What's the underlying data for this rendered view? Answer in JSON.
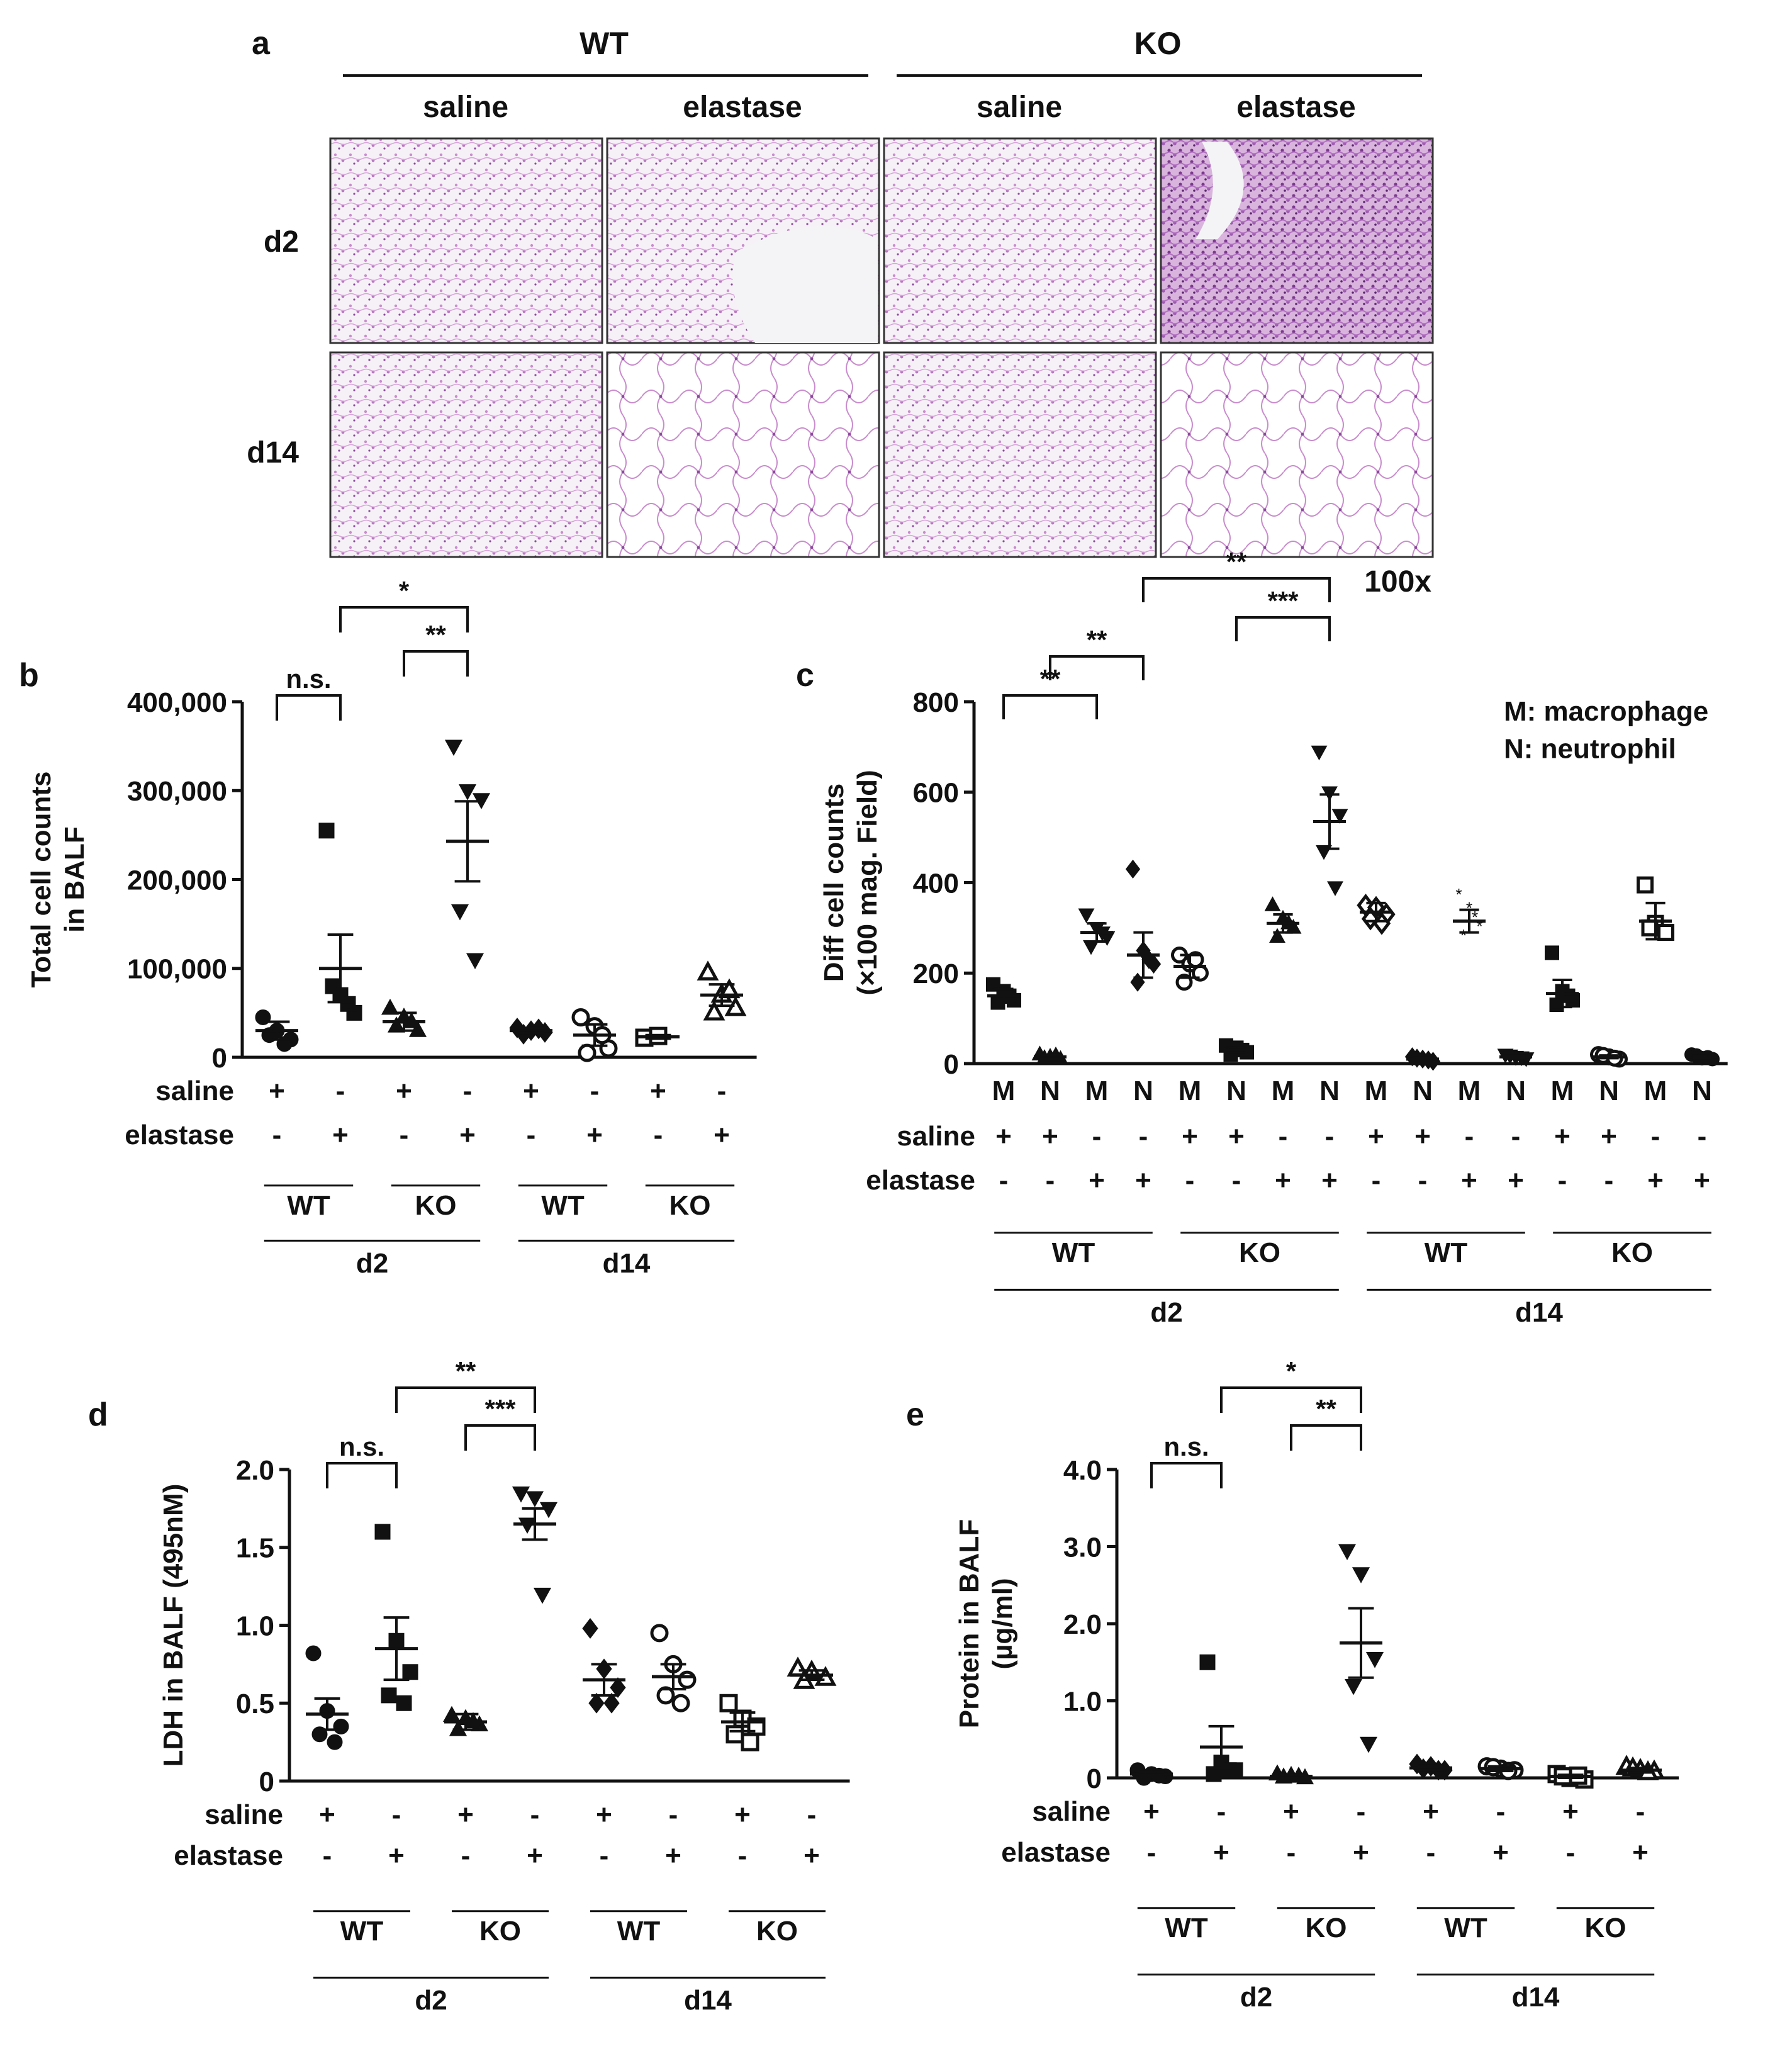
{
  "panel_a": {
    "panel_label": "a",
    "genotypes": [
      "WT",
      "KO"
    ],
    "treatments": [
      "saline",
      "elastase",
      "saline",
      "elastase"
    ],
    "rows": [
      "d2",
      "d14"
    ],
    "magnification": "100x",
    "colors": {
      "stain_light": "#f4eef6",
      "stain_tissue": "#c98ccd",
      "stain_dense": "#7a3a8c"
    }
  },
  "chart_data": [
    {
      "panel": "b",
      "type": "scatter",
      "ylabel_lines": [
        "Total cell counts",
        "in BALF"
      ],
      "ylim": [
        0,
        400000
      ],
      "yticks": [
        0,
        100000,
        200000,
        300000,
        400000
      ],
      "ytick_labels": [
        "0",
        "100,000",
        "200,000",
        "300,000",
        "400,000"
      ],
      "row_labels": [
        "saline",
        "elastase"
      ],
      "saline_marks": [
        "+",
        "-",
        "+",
        "-",
        "+",
        "-",
        "+",
        "-"
      ],
      "elastase_marks": [
        "-",
        "+",
        "-",
        "+",
        "-",
        "+",
        "-",
        "+"
      ],
      "groups": [
        {
          "marker": "circle",
          "mean": 30000,
          "sem": 10000,
          "points": [
            45000,
            30000,
            20000,
            25000,
            15000
          ]
        },
        {
          "marker": "square",
          "mean": 100000,
          "sem": 38000,
          "points": [
            255000,
            70000,
            50000,
            80000,
            60000
          ]
        },
        {
          "marker": "triangle",
          "mean": 40000,
          "sem": 10000,
          "points": [
            55000,
            45000,
            30000,
            35000,
            40000
          ]
        },
        {
          "marker": "triangle-down",
          "mean": 243000,
          "sem": 45000,
          "points": [
            350000,
            300000,
            290000,
            165000,
            110000
          ]
        },
        {
          "marker": "diamond",
          "mean": 30000,
          "sem": 3000,
          "points": [
            33000,
            30000,
            28000,
            26000,
            32000
          ]
        },
        {
          "marker": "circle-open",
          "mean": 25000,
          "sem": 12000,
          "points": [
            45000,
            35000,
            10000,
            5000,
            25000
          ]
        },
        {
          "marker": "square-open",
          "mean": 23000,
          "sem": 2000,
          "points": [
            22000,
            24000
          ]
        },
        {
          "marker": "triangle-open",
          "mean": 70000,
          "sem": 12000,
          "points": [
            95000,
            70000,
            55000,
            50000,
            75000
          ]
        }
      ],
      "brackets": [
        {
          "from": 0,
          "to": 1,
          "label": "n.s.",
          "level": 1
        },
        {
          "from": 2,
          "to": 3,
          "label": "**",
          "level": 2
        },
        {
          "from": 1,
          "to": 3,
          "label": "*",
          "level": 3
        }
      ],
      "genotype_labels": [
        "WT",
        "KO",
        "WT",
        "KO"
      ],
      "day_labels": [
        "d2",
        "d14"
      ]
    },
    {
      "panel": "c",
      "type": "scatter",
      "ylabel_lines": [
        "Diff cell counts",
        "(×100 mag. Field)"
      ],
      "ylim": [
        0,
        800
      ],
      "yticks": [
        0,
        200,
        400,
        600,
        800
      ],
      "ytick_labels": [
        "0",
        "200",
        "400",
        "600",
        "800"
      ],
      "legend_lines": [
        "M: macrophage",
        "N: neutrophil"
      ],
      "category_labels": [
        "M",
        "N",
        "M",
        "N",
        "M",
        "N",
        "M",
        "N",
        "M",
        "N",
        "M",
        "N",
        "M",
        "N",
        "M",
        "N"
      ],
      "row_labels": [
        "saline",
        "elastase"
      ],
      "saline_marks": [
        "+",
        "+",
        "-",
        "-",
        "+",
        "+",
        "-",
        "-",
        "+",
        "+",
        "-",
        "-",
        "+",
        "+",
        "-",
        "-"
      ],
      "elastase_marks": [
        "-",
        "-",
        "+",
        "+",
        "-",
        "-",
        "+",
        "+",
        "-",
        "-",
        "+",
        "+",
        "-",
        "-",
        "+",
        "+"
      ],
      "groups": [
        {
          "marker": "square",
          "mean": 150,
          "sem": 15,
          "points": [
            175,
            160,
            140,
            135,
            150
          ]
        },
        {
          "marker": "triangle",
          "mean": 15,
          "sem": 4,
          "points": [
            20,
            15,
            10,
            12,
            18
          ]
        },
        {
          "marker": "triangle-down",
          "mean": 290,
          "sem": 20,
          "points": [
            330,
            300,
            280,
            260,
            290
          ]
        },
        {
          "marker": "diamond",
          "mean": 240,
          "sem": 50,
          "points": [
            430,
            250,
            220,
            180,
            230
          ]
        },
        {
          "marker": "circle-open",
          "mean": 215,
          "sem": 25,
          "points": [
            240,
            220,
            200,
            180,
            230
          ]
        },
        {
          "marker": "square",
          "mean": 30,
          "sem": 6,
          "points": [
            40,
            35,
            25,
            20,
            30
          ]
        },
        {
          "marker": "triangle",
          "mean": 310,
          "sem": 20,
          "points": [
            350,
            320,
            300,
            280,
            310
          ]
        },
        {
          "marker": "triangle-down",
          "mean": 535,
          "sem": 60,
          "points": [
            690,
            600,
            550,
            470,
            390
          ]
        },
        {
          "marker": "diamond-open",
          "mean": 335,
          "sem": 20,
          "points": [
            350,
            345,
            330,
            320,
            310
          ]
        },
        {
          "marker": "diamond",
          "mean": 10,
          "sem": 3,
          "points": [
            15,
            10,
            5,
            12,
            8
          ]
        },
        {
          "marker": "star",
          "mean": 315,
          "sem": 25,
          "points": [
            370,
            340,
            300,
            280,
            320
          ]
        },
        {
          "marker": "triangle-down",
          "mean": 15,
          "sem": 3,
          "points": [
            20,
            15,
            12,
            18,
            14
          ]
        },
        {
          "marker": "square",
          "mean": 155,
          "sem": 30,
          "points": [
            245,
            160,
            140,
            130,
            150
          ]
        },
        {
          "marker": "circle-open",
          "mean": 15,
          "sem": 3,
          "points": [
            20,
            15,
            10,
            18,
            12
          ]
        },
        {
          "marker": "square-open",
          "mean": 315,
          "sem": 40,
          "points": [
            395,
            310,
            290,
            300
          ]
        },
        {
          "marker": "circle",
          "mean": 15,
          "sem": 3,
          "points": [
            20,
            12,
            10,
            18,
            14
          ]
        }
      ],
      "brackets": [
        {
          "from": 0,
          "to": 2,
          "label": "**",
          "level": 1
        },
        {
          "from": 1,
          "to": 3,
          "label": "**",
          "level": 2
        },
        {
          "from": 5,
          "to": 7,
          "label": "***",
          "level": 3
        },
        {
          "from": 3,
          "to": 7,
          "label": "**",
          "level": 4
        }
      ],
      "genotype_labels": [
        "WT",
        "KO",
        "WT",
        "KO"
      ],
      "day_labels": [
        "d2",
        "d14"
      ]
    },
    {
      "panel": "d",
      "type": "scatter",
      "ylabel_lines": [
        "LDH in BALF (495nM)"
      ],
      "ylim": [
        0,
        2.0
      ],
      "yticks": [
        0,
        0.5,
        1.0,
        1.5,
        2.0
      ],
      "ytick_labels": [
        "0",
        "0.5",
        "1.0",
        "1.5",
        "2.0"
      ],
      "row_labels": [
        "saline",
        "elastase"
      ],
      "saline_marks": [
        "+",
        "-",
        "+",
        "-",
        "+",
        "-",
        "+",
        "-"
      ],
      "elastase_marks": [
        "-",
        "+",
        "-",
        "+",
        "-",
        "+",
        "-",
        "+"
      ],
      "groups": [
        {
          "marker": "circle",
          "mean": 0.43,
          "sem": 0.1,
          "points": [
            0.82,
            0.45,
            0.35,
            0.3,
            0.25
          ]
        },
        {
          "marker": "square",
          "mean": 0.85,
          "sem": 0.2,
          "points": [
            1.6,
            0.9,
            0.7,
            0.55,
            0.5
          ]
        },
        {
          "marker": "triangle",
          "mean": 0.38,
          "sem": 0.05,
          "points": [
            0.42,
            0.4,
            0.36,
            0.33,
            0.38
          ]
        },
        {
          "marker": "triangle-down",
          "mean": 1.65,
          "sem": 0.1,
          "points": [
            1.85,
            1.82,
            1.75,
            1.65,
            1.2
          ]
        },
        {
          "marker": "diamond",
          "mean": 0.65,
          "sem": 0.1,
          "points": [
            0.98,
            0.72,
            0.6,
            0.5,
            0.5
          ]
        },
        {
          "marker": "circle-open",
          "mean": 0.67,
          "sem": 0.08,
          "points": [
            0.95,
            0.75,
            0.65,
            0.55,
            0.5
          ]
        },
        {
          "marker": "square-open",
          "mean": 0.38,
          "sem": 0.06,
          "points": [
            0.5,
            0.4,
            0.35,
            0.3,
            0.25
          ]
        },
        {
          "marker": "triangle-open",
          "mean": 0.68,
          "sem": 0.03,
          "points": [
            0.72,
            0.7,
            0.66,
            0.64
          ]
        }
      ],
      "brackets": [
        {
          "from": 0,
          "to": 1,
          "label": "n.s.",
          "level": 1
        },
        {
          "from": 2,
          "to": 3,
          "label": "***",
          "level": 2
        },
        {
          "from": 1,
          "to": 3,
          "label": "**",
          "level": 3
        }
      ],
      "genotype_labels": [
        "WT",
        "KO",
        "WT",
        "KO"
      ],
      "day_labels": [
        "d2",
        "d14"
      ]
    },
    {
      "panel": "e",
      "type": "scatter",
      "ylabel_lines": [
        "Protein in BALF",
        "(µg/ml)"
      ],
      "ylim": [
        0,
        4.0
      ],
      "yticks": [
        0,
        1.0,
        2.0,
        3.0,
        4.0
      ],
      "ytick_labels": [
        "0",
        "1.0",
        "2.0",
        "3.0",
        "4.0"
      ],
      "row_labels": [
        "saline",
        "elastase"
      ],
      "saline_marks": [
        "+",
        "-",
        "+",
        "-",
        "+",
        "-",
        "+",
        "-"
      ],
      "elastase_marks": [
        "-",
        "+",
        "-",
        "+",
        "-",
        "+",
        "-",
        "+"
      ],
      "groups": [
        {
          "marker": "circle",
          "mean": 0.05,
          "sem": 0.03,
          "points": [
            0.1,
            0.05,
            0.02,
            0.0,
            0.03
          ]
        },
        {
          "marker": "square",
          "mean": 0.4,
          "sem": 0.27,
          "points": [
            1.5,
            0.2,
            0.1,
            0.05,
            0.1
          ]
        },
        {
          "marker": "triangle",
          "mean": 0.02,
          "sem": 0.02,
          "points": [
            0.05,
            0.03,
            0.0,
            0.01,
            0.02
          ]
        },
        {
          "marker": "triangle-down",
          "mean": 1.75,
          "sem": 0.45,
          "points": [
            2.95,
            2.65,
            1.55,
            1.2,
            0.45
          ]
        },
        {
          "marker": "diamond",
          "mean": 0.13,
          "sem": 0.03,
          "points": [
            0.18,
            0.15,
            0.1,
            0.12,
            0.1
          ]
        },
        {
          "marker": "circle-open",
          "mean": 0.12,
          "sem": 0.03,
          "points": [
            0.15,
            0.12,
            0.1,
            0.14,
            0.09
          ]
        },
        {
          "marker": "square-open",
          "mean": 0.02,
          "sem": 0.02,
          "points": [
            0.05,
            0.0,
            -0.02,
            0.02,
            0.03
          ]
        },
        {
          "marker": "triangle-open",
          "mean": 0.1,
          "sem": 0.03,
          "points": [
            0.14,
            0.1,
            0.08,
            0.12,
            0.07
          ]
        }
      ],
      "brackets": [
        {
          "from": 0,
          "to": 1,
          "label": "n.s.",
          "level": 1
        },
        {
          "from": 2,
          "to": 3,
          "label": "**",
          "level": 2
        },
        {
          "from": 1,
          "to": 3,
          "label": "*",
          "level": 3
        }
      ],
      "genotype_labels": [
        "WT",
        "KO",
        "WT",
        "KO"
      ],
      "day_labels": [
        "d2",
        "d14"
      ]
    }
  ]
}
